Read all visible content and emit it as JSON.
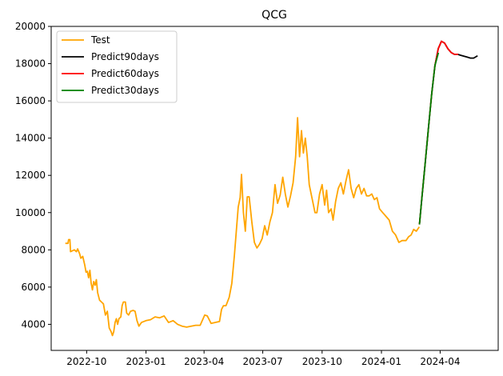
{
  "chart_data": {
    "type": "line",
    "title": "QCG",
    "xlabel": "",
    "ylabel": "",
    "xlim": [
      "2022-08-07",
      "2024-06-30"
    ],
    "ylim": [
      2600,
      20000
    ],
    "x_tick_labels": [
      {
        "date": "2022-10-01",
        "label": "2022-10"
      },
      {
        "date": "2023-01-01",
        "label": "2023-01"
      },
      {
        "date": "2023-04-01",
        "label": "2023-04"
      },
      {
        "date": "2023-07-01",
        "label": "2023-07"
      },
      {
        "date": "2023-10-01",
        "label": "2023-10"
      },
      {
        "date": "2024-01-01",
        "label": "2024-01"
      },
      {
        "date": "2024-04-01",
        "label": "2024-04"
      }
    ],
    "y_ticks": [
      4000,
      6000,
      8000,
      10000,
      12000,
      14000,
      16000,
      18000,
      20000
    ],
    "y_tick_labels": [
      "4000",
      "6000",
      "8000",
      "10000",
      "12000",
      "14000",
      "16000",
      "18000",
      "20000"
    ],
    "grid": false,
    "legend_position": "top-left",
    "series": [
      {
        "name": "Test",
        "color": "#ffa500",
        "points": [
          [
            "2022-08-30",
            8350
          ],
          [
            "2022-09-02",
            8350
          ],
          [
            "2022-09-03",
            8550
          ],
          [
            "2022-09-05",
            8550
          ],
          [
            "2022-09-06",
            7900
          ],
          [
            "2022-09-12",
            8000
          ],
          [
            "2022-09-15",
            7900
          ],
          [
            "2022-09-17",
            8050
          ],
          [
            "2022-09-20",
            7800
          ],
          [
            "2022-09-22",
            7550
          ],
          [
            "2022-09-25",
            7650
          ],
          [
            "2022-09-28",
            7200
          ],
          [
            "2022-09-30",
            6800
          ],
          [
            "2022-10-02",
            6850
          ],
          [
            "2022-10-04",
            6500
          ],
          [
            "2022-10-06",
            6900
          ],
          [
            "2022-10-08",
            6200
          ],
          [
            "2022-10-10",
            5850
          ],
          [
            "2022-10-12",
            6300
          ],
          [
            "2022-10-14",
            6100
          ],
          [
            "2022-10-16",
            6400
          ],
          [
            "2022-10-18",
            5700
          ],
          [
            "2022-10-21",
            5300
          ],
          [
            "2022-10-24",
            5200
          ],
          [
            "2022-10-27",
            5100
          ],
          [
            "2022-10-30",
            4500
          ],
          [
            "2022-11-02",
            4700
          ],
          [
            "2022-11-05",
            3800
          ],
          [
            "2022-11-08",
            3600
          ],
          [
            "2022-11-10",
            3400
          ],
          [
            "2022-11-12",
            3600
          ],
          [
            "2022-11-14",
            4100
          ],
          [
            "2022-11-16",
            4300
          ],
          [
            "2022-11-18",
            4000
          ],
          [
            "2022-11-20",
            4300
          ],
          [
            "2022-11-23",
            4400
          ],
          [
            "2022-11-25",
            5000
          ],
          [
            "2022-11-27",
            5200
          ],
          [
            "2022-11-30",
            5200
          ],
          [
            "2022-12-02",
            4600
          ],
          [
            "2022-12-05",
            4500
          ],
          [
            "2022-12-08",
            4700
          ],
          [
            "2022-12-12",
            4750
          ],
          [
            "2022-12-15",
            4700
          ],
          [
            "2022-12-18",
            4200
          ],
          [
            "2022-12-21",
            3900
          ],
          [
            "2022-12-25",
            4100
          ],
          [
            "2023-01-01",
            4200
          ],
          [
            "2023-01-08",
            4250
          ],
          [
            "2023-01-15",
            4400
          ],
          [
            "2023-01-22",
            4350
          ],
          [
            "2023-01-29",
            4450
          ],
          [
            "2023-02-05",
            4100
          ],
          [
            "2023-02-12",
            4200
          ],
          [
            "2023-02-19",
            4000
          ],
          [
            "2023-02-26",
            3900
          ],
          [
            "2023-03-05",
            3850
          ],
          [
            "2023-03-12",
            3900
          ],
          [
            "2023-03-19",
            3950
          ],
          [
            "2023-03-26",
            3950
          ],
          [
            "2023-04-02",
            4500
          ],
          [
            "2023-04-06",
            4450
          ],
          [
            "2023-04-12",
            4050
          ],
          [
            "2023-04-18",
            4100
          ],
          [
            "2023-04-25",
            4150
          ],
          [
            "2023-04-28",
            4800
          ],
          [
            "2023-05-01",
            5000
          ],
          [
            "2023-05-05",
            5000
          ],
          [
            "2023-05-10",
            5450
          ],
          [
            "2023-05-14",
            6200
          ],
          [
            "2023-05-18",
            7700
          ],
          [
            "2023-05-21",
            9000
          ],
          [
            "2023-05-24",
            10300
          ],
          [
            "2023-05-27",
            10800
          ],
          [
            "2023-05-29",
            12050
          ],
          [
            "2023-06-01",
            10000
          ],
          [
            "2023-06-04",
            9000
          ],
          [
            "2023-06-07",
            10850
          ],
          [
            "2023-06-10",
            10850
          ],
          [
            "2023-06-14",
            9500
          ],
          [
            "2023-06-18",
            8400
          ],
          [
            "2023-06-22",
            8100
          ],
          [
            "2023-06-26",
            8300
          ],
          [
            "2023-06-30",
            8600
          ],
          [
            "2023-07-04",
            9300
          ],
          [
            "2023-07-08",
            8800
          ],
          [
            "2023-07-12",
            9500
          ],
          [
            "2023-07-16",
            10000
          ],
          [
            "2023-07-20",
            11500
          ],
          [
            "2023-07-24",
            10500
          ],
          [
            "2023-07-28",
            10950
          ],
          [
            "2023-08-01",
            11900
          ],
          [
            "2023-08-05",
            11000
          ],
          [
            "2023-08-09",
            10300
          ],
          [
            "2023-08-13",
            10900
          ],
          [
            "2023-08-17",
            11600
          ],
          [
            "2023-08-21",
            13000
          ],
          [
            "2023-08-24",
            15100
          ],
          [
            "2023-08-27",
            13000
          ],
          [
            "2023-08-30",
            14400
          ],
          [
            "2023-09-02",
            13200
          ],
          [
            "2023-09-05",
            14000
          ],
          [
            "2023-09-08",
            13000
          ],
          [
            "2023-09-11",
            11500
          ],
          [
            "2023-09-14",
            11000
          ],
          [
            "2023-09-17",
            10500
          ],
          [
            "2023-09-20",
            10000
          ],
          [
            "2023-09-23",
            10000
          ],
          [
            "2023-09-27",
            11000
          ],
          [
            "2023-10-01",
            11500
          ],
          [
            "2023-10-05",
            10400
          ],
          [
            "2023-10-08",
            11200
          ],
          [
            "2023-10-11",
            10000
          ],
          [
            "2023-10-15",
            10200
          ],
          [
            "2023-10-18",
            9600
          ],
          [
            "2023-10-22",
            10600
          ],
          [
            "2023-10-26",
            11300
          ],
          [
            "2023-10-30",
            11600
          ],
          [
            "2023-11-03",
            11000
          ],
          [
            "2023-11-07",
            11700
          ],
          [
            "2023-11-11",
            12300
          ],
          [
            "2023-11-15",
            11300
          ],
          [
            "2023-11-19",
            10800
          ],
          [
            "2023-11-23",
            11300
          ],
          [
            "2023-11-27",
            11500
          ],
          [
            "2023-12-01",
            11000
          ],
          [
            "2023-12-05",
            11300
          ],
          [
            "2023-12-09",
            10900
          ],
          [
            "2023-12-13",
            10900
          ],
          [
            "2023-12-17",
            11000
          ],
          [
            "2023-12-21",
            10700
          ],
          [
            "2023-12-25",
            10800
          ],
          [
            "2023-12-29",
            10200
          ],
          [
            "2024-01-03",
            10000
          ],
          [
            "2024-01-08",
            9800
          ],
          [
            "2024-01-13",
            9600
          ],
          [
            "2024-01-18",
            9000
          ],
          [
            "2024-01-23",
            8800
          ],
          [
            "2024-01-28",
            8400
          ],
          [
            "2024-02-02",
            8500
          ],
          [
            "2024-02-08",
            8500
          ],
          [
            "2024-02-12",
            8700
          ],
          [
            "2024-02-16",
            8800
          ],
          [
            "2024-02-20",
            9100
          ],
          [
            "2024-02-24",
            9000
          ],
          [
            "2024-02-28",
            9200
          ]
        ]
      },
      {
        "name": "Predict90days",
        "color": "#000000",
        "points": [
          [
            "2024-02-29",
            9400
          ],
          [
            "2024-03-04",
            10900
          ],
          [
            "2024-03-09",
            12700
          ],
          [
            "2024-03-14",
            14600
          ],
          [
            "2024-03-19",
            16400
          ],
          [
            "2024-03-24",
            17900
          ],
          [
            "2024-03-29",
            18800
          ],
          [
            "2024-04-03",
            19200
          ],
          [
            "2024-04-08",
            19100
          ],
          [
            "2024-04-13",
            18800
          ],
          [
            "2024-04-18",
            18600
          ],
          [
            "2024-04-23",
            18500
          ],
          [
            "2024-04-28",
            18500
          ],
          [
            "2024-05-03",
            18450
          ],
          [
            "2024-05-08",
            18400
          ],
          [
            "2024-05-13",
            18350
          ],
          [
            "2024-05-18",
            18300
          ],
          [
            "2024-05-23",
            18300
          ],
          [
            "2024-05-28",
            18400
          ]
        ]
      },
      {
        "name": "Predict60days",
        "color": "#ff0000",
        "points": [
          [
            "2024-02-29",
            9400
          ],
          [
            "2024-03-04",
            10900
          ],
          [
            "2024-03-09",
            12700
          ],
          [
            "2024-03-14",
            14600
          ],
          [
            "2024-03-19",
            16400
          ],
          [
            "2024-03-24",
            17900
          ],
          [
            "2024-03-29",
            18800
          ],
          [
            "2024-04-03",
            19200
          ],
          [
            "2024-04-08",
            19100
          ],
          [
            "2024-04-13",
            18800
          ],
          [
            "2024-04-18",
            18600
          ],
          [
            "2024-04-23",
            18500
          ],
          [
            "2024-04-28",
            18500
          ]
        ]
      },
      {
        "name": "Predict30days",
        "color": "#008000",
        "points": [
          [
            "2024-02-29",
            9400
          ],
          [
            "2024-03-04",
            10900
          ],
          [
            "2024-03-09",
            12700
          ],
          [
            "2024-03-14",
            14600
          ],
          [
            "2024-03-19",
            16400
          ],
          [
            "2024-03-24",
            17900
          ],
          [
            "2024-03-29",
            18550
          ]
        ]
      }
    ]
  }
}
